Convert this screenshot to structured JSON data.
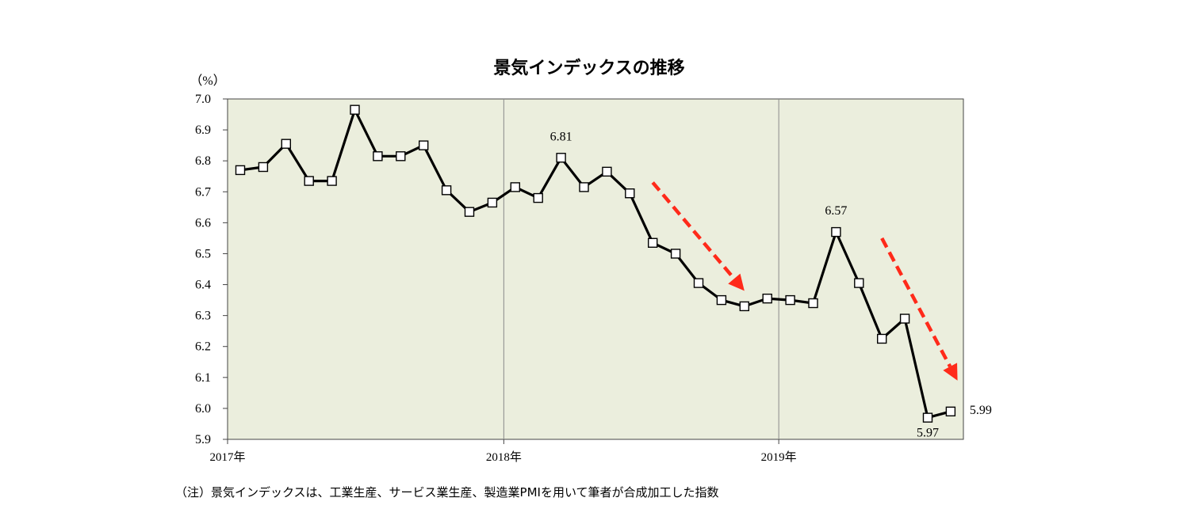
{
  "chart_data": {
    "type": "line",
    "title": "景気インデックスの推移",
    "ylabel": "（%）",
    "xlabel": "",
    "ylim": [
      5.9,
      7.0
    ],
    "ystep": 0.1,
    "grid": {
      "vertical_year_lines": true,
      "horizontal": false
    },
    "plot_background": "#ebeedd",
    "line_color": "#000000",
    "arrow_color": "#ff2a1a",
    "x_tick_labels": [
      "2017年",
      "2018年",
      "2019年"
    ],
    "series": [
      {
        "values": [
          6.77,
          6.78,
          6.855,
          6.735,
          6.735,
          6.965,
          6.815,
          6.815,
          6.85,
          6.705,
          6.635,
          6.665,
          6.715,
          6.68,
          6.81,
          6.715,
          6.765,
          6.695,
          6.535,
          6.5,
          6.405,
          6.35,
          6.33,
          6.355,
          6.35,
          6.34,
          6.57,
          6.405,
          6.225,
          6.29,
          5.97,
          5.99
        ]
      }
    ],
    "annotations": [
      {
        "index": 14,
        "text": "6.81",
        "position": "above"
      },
      {
        "index": 26,
        "text": "6.57",
        "position": "above"
      },
      {
        "index": 30,
        "text": "5.97",
        "position": "below"
      },
      {
        "index": 31,
        "text": "5.99",
        "position": "right"
      }
    ],
    "trend_arrows": [
      {
        "from": {
          "month_index": 18.0,
          "y": 6.73
        },
        "to": {
          "month_index": 22.0,
          "y": 6.38
        }
      },
      {
        "from": {
          "month_index": 28.0,
          "y": 6.55
        },
        "to": {
          "month_index": 31.3,
          "y": 6.09
        }
      }
    ],
    "note": "（注）景気インデックスは、工業生産、サービス業生産、製造業PMIを用いて筆者が合成加工した指数"
  }
}
